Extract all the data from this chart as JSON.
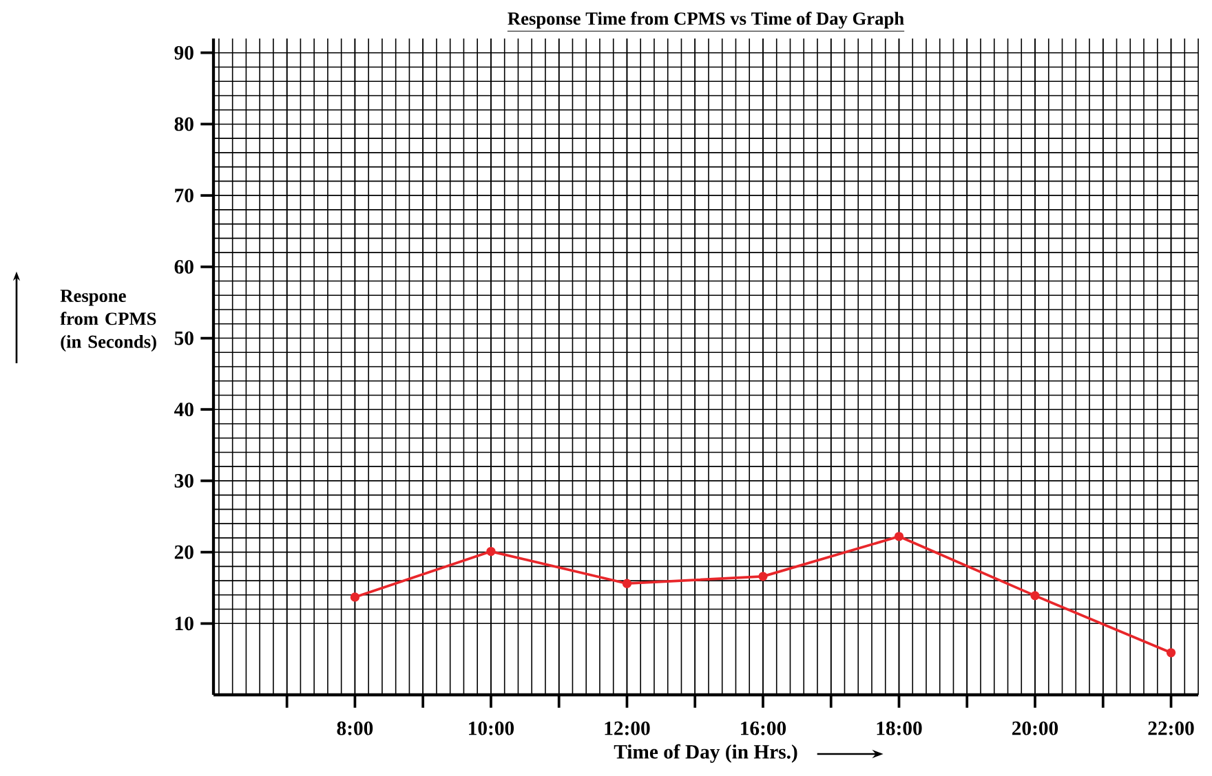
{
  "chart_data": {
    "type": "line",
    "title": "Response Time from CPMS vs Time of Day Graph",
    "xlabel": "Time of Day (in Hrs.)",
    "ylabel": "Respone from CPMS (in Seconds)",
    "categories": [
      "8:00",
      "10:00",
      "12:00",
      "16:00",
      "18:00",
      "20:00",
      "22:00"
    ],
    "series": [
      {
        "color": "#e8262a",
        "values": [
          13.7,
          20.1,
          15.6,
          16.6,
          22.2,
          13.9,
          5.9
        ]
      }
    ],
    "ylim": [
      0,
      92
    ],
    "yticks": [
      10,
      20,
      30,
      40,
      50,
      60,
      70,
      80,
      90
    ],
    "grid": true,
    "marker": "circle",
    "line_style": "solid"
  }
}
